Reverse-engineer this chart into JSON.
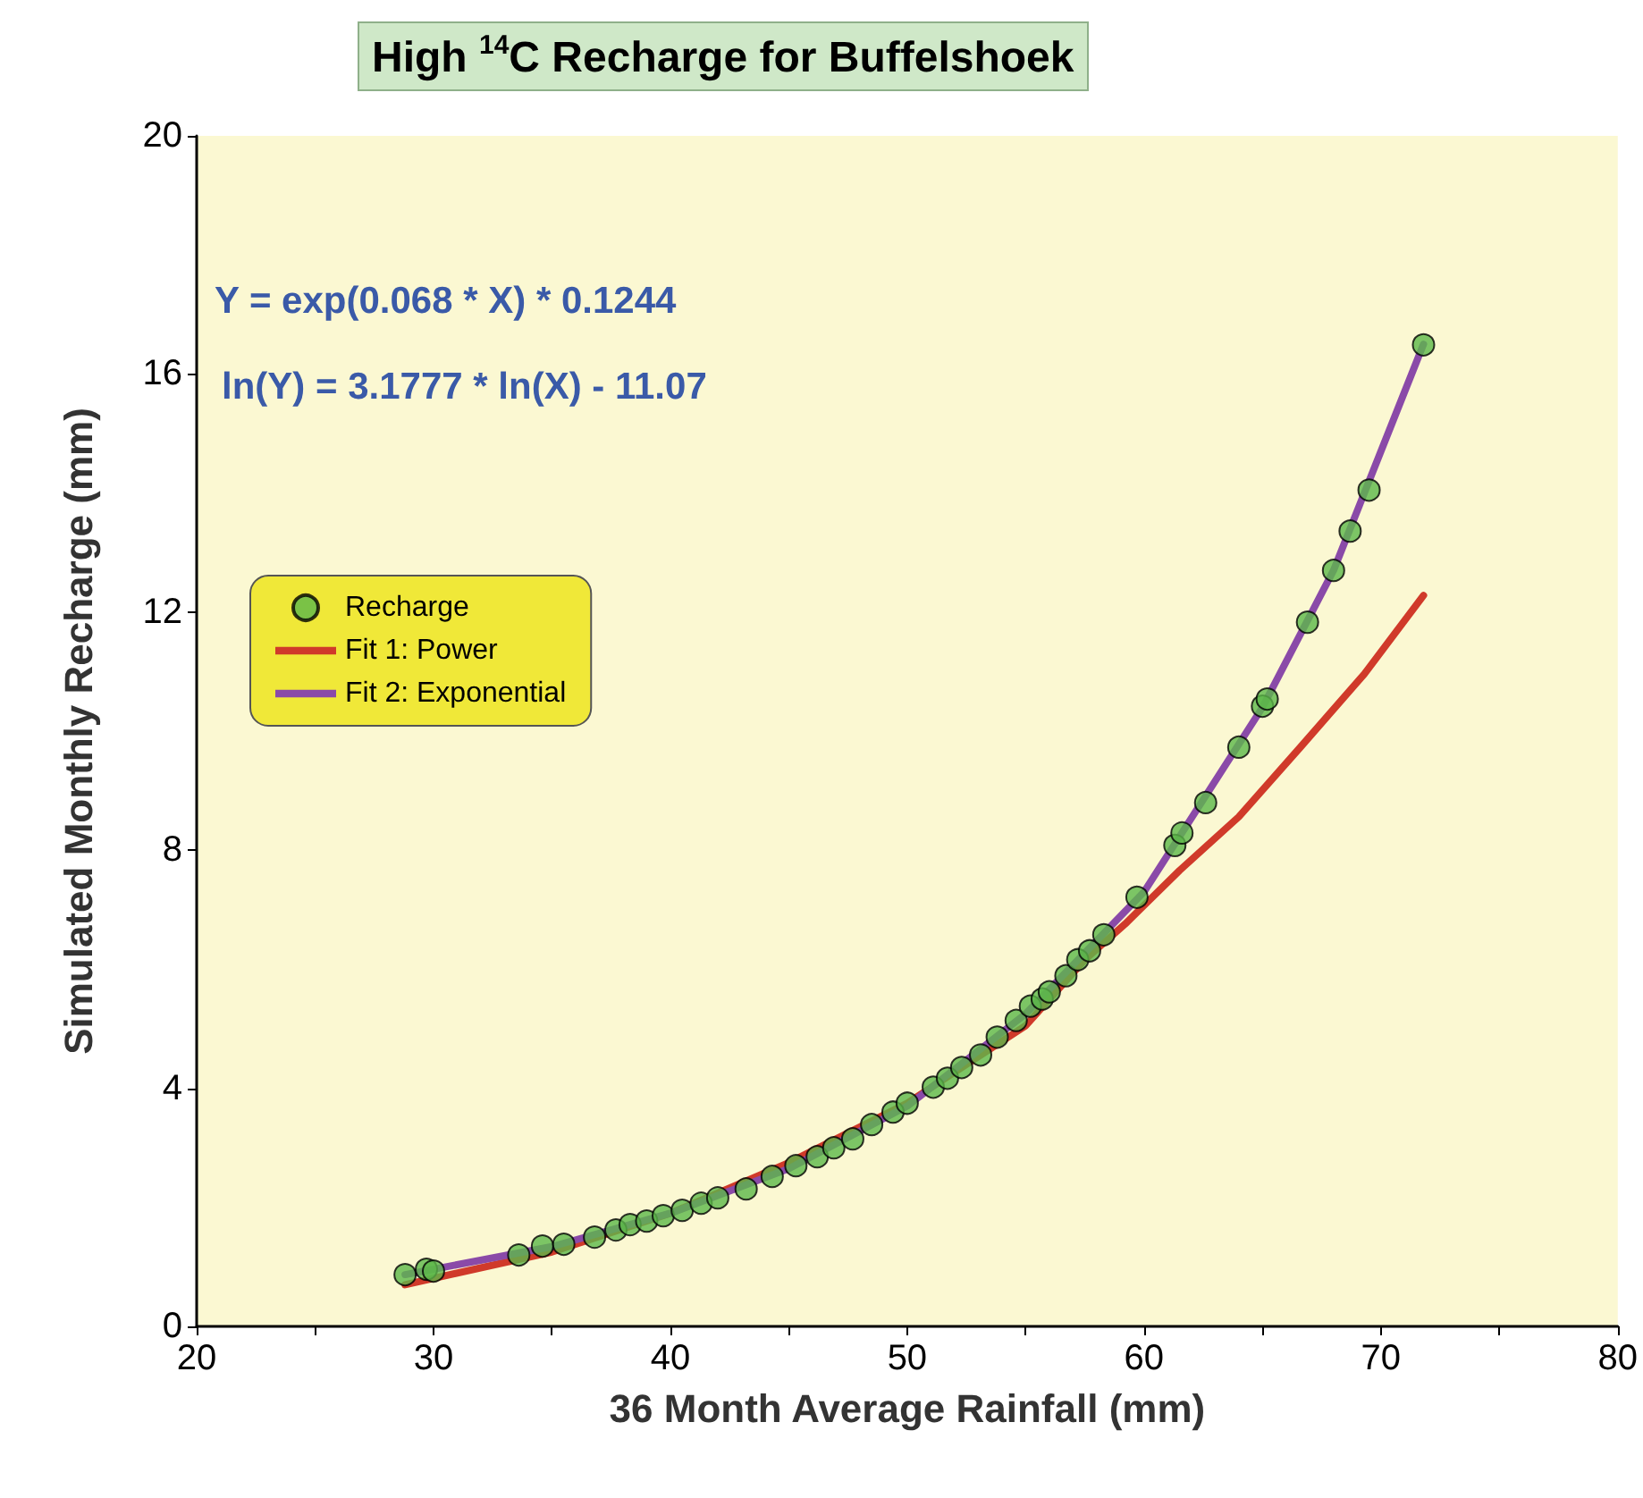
{
  "chart_data": {
    "type": "scatter",
    "title": "High $^{14}$C Recharge for Buffelshoek",
    "xlabel": "36 Month Average Rainfall (mm)",
    "ylabel": "Simulated Monthly Recharge (mm)",
    "annotations": [
      "Y = exp(0.068 * X) * 0.1244",
      "ln(Y) = 3.1777 * ln(X) - 11.07"
    ],
    "xlim": [
      20,
      80
    ],
    "xticks": [
      20,
      {
        "value": 25,
        "label": null
      },
      30,
      {
        "value": 35,
        "label": null
      },
      40,
      {
        "value": 45,
        "label": null
      },
      50,
      {
        "value": 55,
        "label": null
      },
      60,
      {
        "value": 65,
        "label": null
      },
      70,
      {
        "value": 75,
        "label": null
      },
      80
    ],
    "ylim": [
      0,
      20
    ],
    "yticks": [
      0,
      4,
      8,
      12,
      16,
      20
    ],
    "grid": false,
    "legend": "top left",
    "marker": "circle",
    "series": [
      {
        "name": "Recharge",
        "color": "#5cb84a",
        "x": [
          28.8,
          29.7,
          30.0,
          33.6,
          34.6,
          35.5,
          36.8,
          37.7,
          38.3,
          39.0,
          39.7,
          40.5,
          41.3,
          42.0,
          43.2,
          44.3,
          45.3,
          46.2,
          46.9,
          47.7,
          48.5,
          49.4,
          50.0,
          51.1,
          51.7,
          52.3,
          53.1,
          53.8,
          54.6,
          55.2,
          55.7,
          56.0,
          56.7,
          57.2,
          57.7,
          58.3,
          59.7,
          61.3,
          61.6,
          62.6,
          64.0,
          65.0,
          65.2,
          66.9,
          68.0,
          68.7,
          69.5,
          71.8
        ],
        "values": [
          0.87,
          0.96,
          0.93,
          1.2,
          1.35,
          1.38,
          1.5,
          1.62,
          1.71,
          1.77,
          1.86,
          1.95,
          2.07,
          2.16,
          2.31,
          2.52,
          2.7,
          2.85,
          3.0,
          3.15,
          3.39,
          3.6,
          3.75,
          4.02,
          4.17,
          4.35,
          4.56,
          4.86,
          5.14,
          5.38,
          5.5,
          5.62,
          5.89,
          6.16,
          6.31,
          6.58,
          7.21,
          8.08,
          8.29,
          8.8,
          9.73,
          10.42,
          10.54,
          11.83,
          12.7,
          13.36,
          14.05,
          16.49
        ]
      },
      {
        "name": "Fit 1: Power",
        "type": "line",
        "color": "#d03a2a",
        "marker": "none",
        "line_style": "solid",
        "x": [
          28.8,
          35,
          40,
          45,
          50,
          55,
          57.5,
          59.2,
          61.5,
          64.0,
          66.6,
          69.3,
          71.8
        ],
        "values": [
          0.7,
          1.25,
          1.9,
          2.75,
          3.75,
          5.05,
          6.16,
          6.76,
          7.66,
          8.56,
          9.73,
          10.96,
          12.28
        ]
      },
      {
        "name": "Fit 2: Exponential",
        "type": "line",
        "color": "#8a4aa8",
        "marker": "none",
        "line_style": "solid",
        "x": [
          28.8,
          35,
          40,
          45,
          50,
          55,
          60,
          65,
          68,
          71.8
        ],
        "values": [
          0.87,
          1.34,
          1.9,
          2.65,
          3.7,
          5.25,
          7.3,
          10.4,
          12.7,
          16.5
        ]
      }
    ]
  }
}
